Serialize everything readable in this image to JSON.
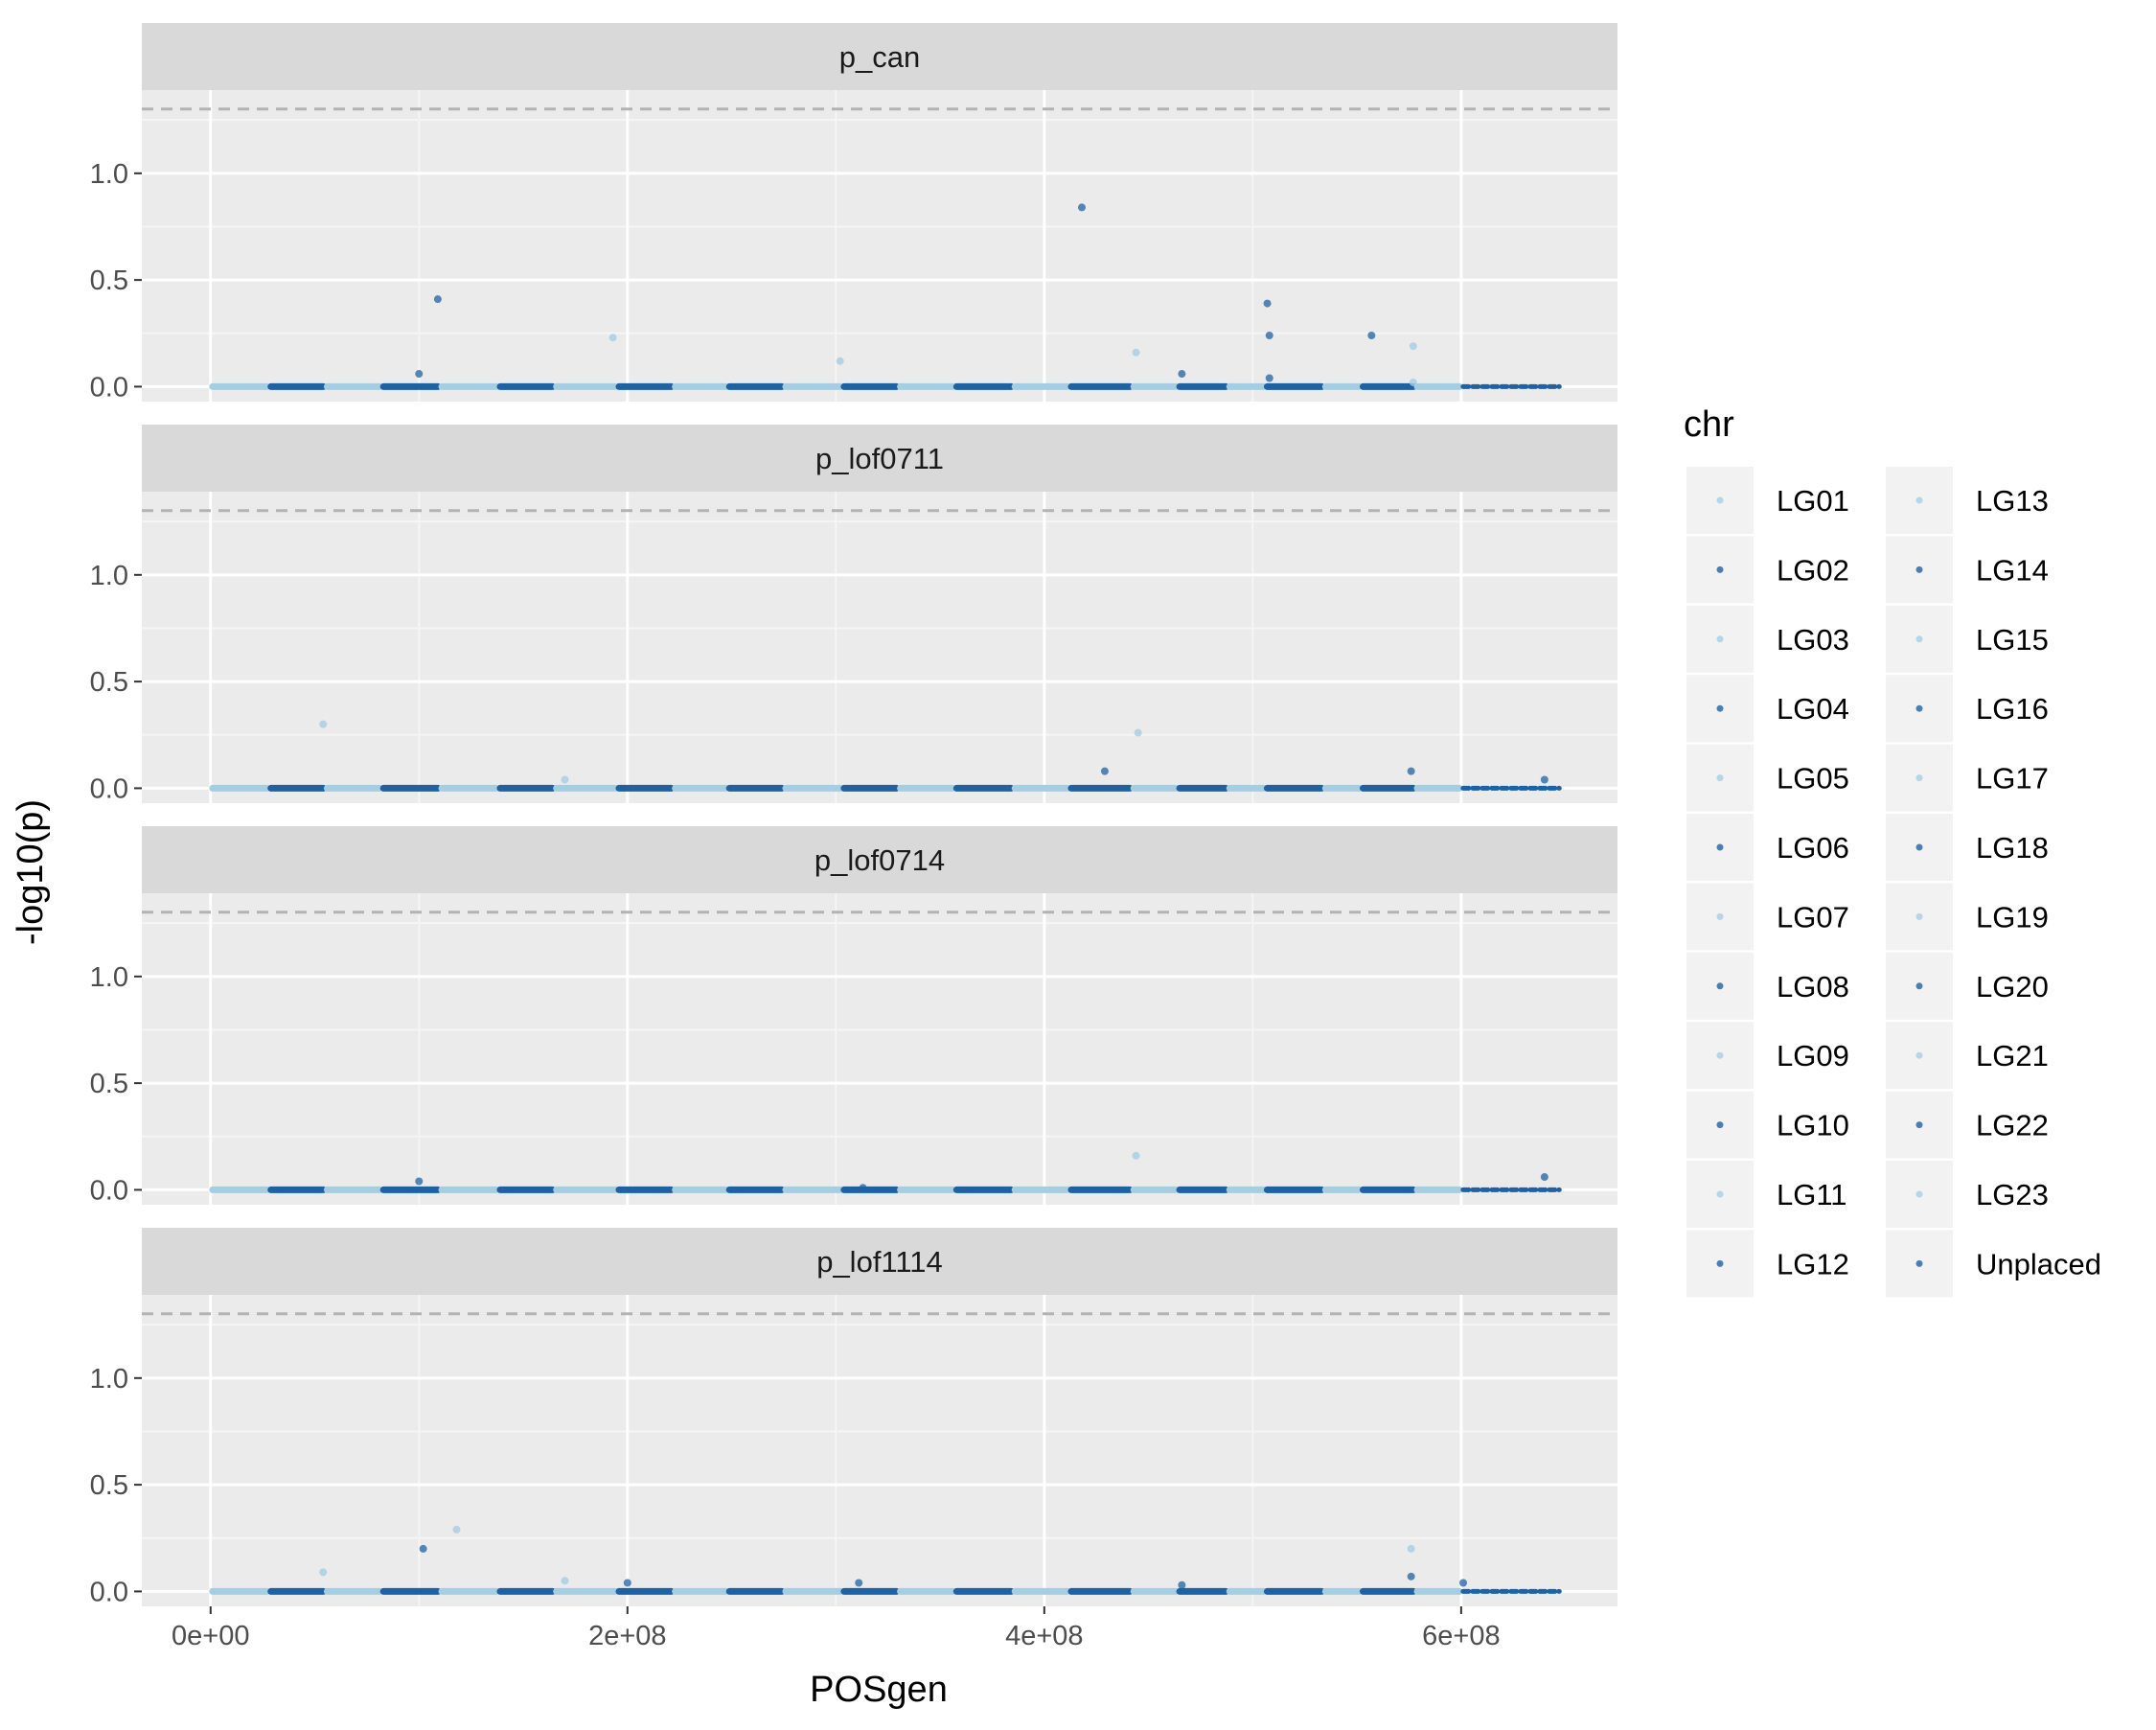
{
  "chart_data": {
    "type": "scatter",
    "subtype": "faceted-manhattan",
    "xlabel": "POSgen",
    "ylabel": "-log10(p)",
    "xlim": [
      -160000000,
      3150000000
    ],
    "ylim": [
      -0.07,
      1.39
    ],
    "x_ticks": [
      0,
      200000000,
      400000000,
      600000000
    ],
    "x_tick_labels": [
      "0e+00",
      "2e+08",
      "4e+08",
      "6e+08"
    ],
    "y_ticks": [
      0.0,
      0.5,
      1.0
    ],
    "y_tick_labels": [
      "0.0",
      "0.5",
      "1.0"
    ],
    "threshold_line": {
      "y": 1.30103,
      "style": "dashed",
      "color": "#b3b3b3"
    },
    "grid": true,
    "legend": {
      "title": "chr",
      "placement": "right",
      "columns": 2,
      "entries": [
        "LG01",
        "LG02",
        "LG03",
        "LG04",
        "LG05",
        "LG06",
        "LG07",
        "LG08",
        "LG09",
        "LG10",
        "LG11",
        "LG12",
        "LG13",
        "LG14",
        "LG15",
        "LG16",
        "LG17",
        "LG18",
        "LG19",
        "LG20",
        "LG21",
        "LG22",
        "LG23",
        "Unplaced"
      ]
    },
    "colors": {
      "light": "#a6cee3",
      "dark": "#1f62a4",
      "panel_bg": "#ebebeb",
      "strip_bg": "#d9d9d9",
      "grid_major": "#ffffff"
    },
    "chromosomes": [
      {
        "name": "LG01",
        "start": 0,
        "end": 28000000,
        "shade": "light"
      },
      {
        "name": "LG02",
        "start": 28000000,
        "end": 55000000,
        "shade": "dark"
      },
      {
        "name": "LG03",
        "start": 55000000,
        "end": 82000000,
        "shade": "light"
      },
      {
        "name": "LG04",
        "start": 82000000,
        "end": 110000000,
        "shade": "dark"
      },
      {
        "name": "LG05",
        "start": 110000000,
        "end": 138000000,
        "shade": "light"
      },
      {
        "name": "LG06",
        "start": 138000000,
        "end": 165000000,
        "shade": "dark"
      },
      {
        "name": "LG07",
        "start": 165000000,
        "end": 195000000,
        "shade": "light"
      },
      {
        "name": "LG08",
        "start": 195000000,
        "end": 222000000,
        "shade": "dark"
      },
      {
        "name": "LG09",
        "start": 222000000,
        "end": 248000000,
        "shade": "light"
      },
      {
        "name": "LG10",
        "start": 248000000,
        "end": 275000000,
        "shade": "dark"
      },
      {
        "name": "LG11",
        "start": 275000000,
        "end": 303000000,
        "shade": "light"
      },
      {
        "name": "LG12",
        "start": 303000000,
        "end": 330000000,
        "shade": "dark"
      },
      {
        "name": "LG13",
        "start": 330000000,
        "end": 357000000,
        "shade": "light"
      },
      {
        "name": "LG14",
        "start": 357000000,
        "end": 385000000,
        "shade": "dark"
      },
      {
        "name": "LG15",
        "start": 385000000,
        "end": 412000000,
        "shade": "light"
      },
      {
        "name": "LG16",
        "start": 412000000,
        "end": 442000000,
        "shade": "dark"
      },
      {
        "name": "LG17",
        "start": 442000000,
        "end": 464000000,
        "shade": "light"
      },
      {
        "name": "LG18",
        "start": 464000000,
        "end": 488000000,
        "shade": "dark"
      },
      {
        "name": "LG19",
        "start": 488000000,
        "end": 506000000,
        "shade": "light"
      },
      {
        "name": "LG20",
        "start": 506000000,
        "end": 534000000,
        "shade": "dark"
      },
      {
        "name": "LG21",
        "start": 534000000,
        "end": 552000000,
        "shade": "light"
      },
      {
        "name": "LG22",
        "start": 552000000,
        "end": 578000000,
        "shade": "dark"
      },
      {
        "name": "LG23",
        "start": 578000000,
        "end": 600000000,
        "shade": "light"
      },
      {
        "name": "Unplaced",
        "start": 600000000,
        "end": 648000000,
        "shade": "dark"
      }
    ],
    "panels": [
      {
        "name": "p_can",
        "points": [
          {
            "x": 100000000,
            "y": 0.06,
            "shade": "dark"
          },
          {
            "x": 109000000,
            "y": 0.41,
            "shade": "dark"
          },
          {
            "x": 193000000,
            "y": 0.23,
            "shade": "light"
          },
          {
            "x": 302000000,
            "y": 0.12,
            "shade": "light"
          },
          {
            "x": 418000000,
            "y": 0.84,
            "shade": "dark"
          },
          {
            "x": 444000000,
            "y": 0.16,
            "shade": "light"
          },
          {
            "x": 466000000,
            "y": 0.06,
            "shade": "dark"
          },
          {
            "x": 507000000,
            "y": 0.39,
            "shade": "dark"
          },
          {
            "x": 508000000,
            "y": 0.24,
            "shade": "dark"
          },
          {
            "x": 508000000,
            "y": 0.04,
            "shade": "dark"
          },
          {
            "x": 557000000,
            "y": 0.24,
            "shade": "dark"
          },
          {
            "x": 577000000,
            "y": 0.19,
            "shade": "light"
          },
          {
            "x": 577000000,
            "y": 0.02,
            "shade": "light"
          }
        ]
      },
      {
        "name": "p_lof0711",
        "points": [
          {
            "x": 54000000,
            "y": 0.3,
            "shade": "light"
          },
          {
            "x": 170000000,
            "y": 0.04,
            "shade": "light"
          },
          {
            "x": 429000000,
            "y": 0.08,
            "shade": "dark"
          },
          {
            "x": 445000000,
            "y": 0.26,
            "shade": "light"
          },
          {
            "x": 576000000,
            "y": 0.08,
            "shade": "dark"
          },
          {
            "x": 640000000,
            "y": 0.04,
            "shade": "dark"
          }
        ]
      },
      {
        "name": "p_lof0714",
        "points": [
          {
            "x": 100000000,
            "y": 0.04,
            "shade": "dark"
          },
          {
            "x": 313000000,
            "y": 0.01,
            "shade": "dark"
          },
          {
            "x": 444000000,
            "y": 0.16,
            "shade": "light"
          },
          {
            "x": 640000000,
            "y": 0.06,
            "shade": "dark"
          }
        ]
      },
      {
        "name": "p_lof1114",
        "points": [
          {
            "x": 54000000,
            "y": 0.09,
            "shade": "light"
          },
          {
            "x": 102000000,
            "y": 0.2,
            "shade": "dark"
          },
          {
            "x": 118000000,
            "y": 0.29,
            "shade": "light"
          },
          {
            "x": 170000000,
            "y": 0.05,
            "shade": "light"
          },
          {
            "x": 200000000,
            "y": 0.04,
            "shade": "dark"
          },
          {
            "x": 311000000,
            "y": 0.04,
            "shade": "dark"
          },
          {
            "x": 466000000,
            "y": 0.03,
            "shade": "dark"
          },
          {
            "x": 576000000,
            "y": 0.2,
            "shade": "light"
          },
          {
            "x": 576000000,
            "y": 0.07,
            "shade": "dark"
          },
          {
            "x": 601000000,
            "y": 0.04,
            "shade": "dark"
          }
        ]
      }
    ]
  }
}
